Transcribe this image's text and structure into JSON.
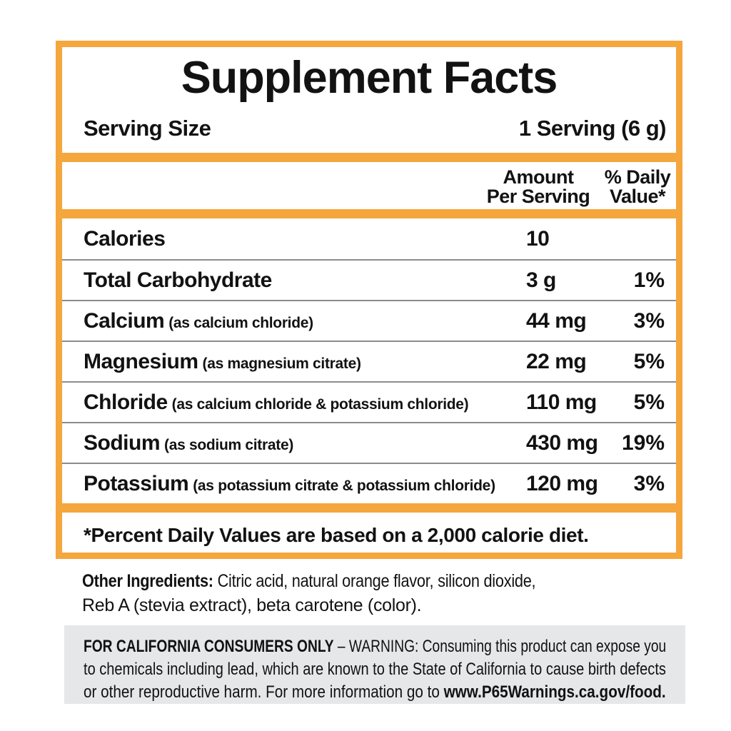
{
  "panel": {
    "title": "Supplement Facts",
    "serving": {
      "label": "Serving Size",
      "value": "1 Serving (6 g)"
    },
    "columns": {
      "amount_header": "Amount\nPer Serving",
      "daily_value_header": "% Daily\nValue*"
    },
    "rows": [
      {
        "name": "Calories",
        "detail": "",
        "amount": "10",
        "dv": ""
      },
      {
        "name": "Total Carbohydrate",
        "detail": "",
        "amount": "3 g",
        "dv": "1%"
      },
      {
        "name": "Calcium",
        "detail": "(as calcium chloride)",
        "amount": "44 mg",
        "dv": "3%"
      },
      {
        "name": "Magnesium",
        "detail": "(as magnesium citrate)",
        "amount": "22 mg",
        "dv": "5%"
      },
      {
        "name": "Chloride",
        "detail": "(as calcium chloride & potassium chloride)",
        "amount": "110 mg",
        "dv": "5%"
      },
      {
        "name": "Sodium",
        "detail": "(as sodium citrate)",
        "amount": "430 mg",
        "dv": "19%"
      },
      {
        "name": "Potassium",
        "detail": "(as potassium citrate & potassium chloride)",
        "amount": "120 mg",
        "dv": "3%"
      }
    ],
    "footnote": "*Percent Daily Values are based on a 2,000 calorie diet."
  },
  "other_ingredients": {
    "lines": [
      {
        "bold": "Other Ingredients:",
        "text": " Citric acid, natural orange flavor, silicon dioxide,",
        "bold_end": ""
      },
      {
        "bold": "",
        "text": "Reb A (stevia extract), beta carotene (color).",
        "bold_end": ""
      }
    ]
  },
  "california_warning": {
    "lines": [
      {
        "bold": "FOR CALIFORNIA CONSUMERS ONLY",
        "text": " – WARNING: Consuming this product can expose you",
        "bold_end": ""
      },
      {
        "bold": "",
        "text": "to chemicals including lead, which are known to the State of California to cause birth defects",
        "bold_end": ""
      },
      {
        "bold": "",
        "text": "or other reproductive harm. For more information go to ",
        "bold_end": "www.P65Warnings.ca.gov/food."
      }
    ]
  },
  "colors": {
    "accent_orange": "#F5A63C",
    "divider_gray": "#8C8C8C",
    "warning_background": "#E6E7E8",
    "text_black": "#121212"
  }
}
